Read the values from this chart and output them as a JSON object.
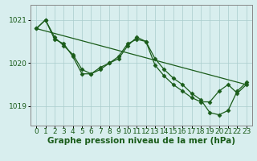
{
  "xlabel": "Graphe pression niveau de la mer (hPa)",
  "x_labels": [
    "0",
    "1",
    "2",
    "3",
    "4",
    "5",
    "6",
    "7",
    "8",
    "9",
    "10",
    "11",
    "12",
    "13",
    "14",
    "15",
    "16",
    "17",
    "18",
    "19",
    "20",
    "21",
    "22",
    "23"
  ],
  "hours": [
    0,
    1,
    2,
    3,
    4,
    5,
    6,
    7,
    8,
    9,
    10,
    11,
    12,
    13,
    14,
    15,
    16,
    17,
    18,
    19,
    20,
    21,
    22,
    23
  ],
  "line_straight": [
    [
      0,
      1020.8
    ],
    [
      23,
      1019.5
    ]
  ],
  "line_upper": [
    1020.8,
    1021.0,
    1020.6,
    1020.4,
    1020.2,
    1019.85,
    1019.75,
    1019.85,
    1020.0,
    1020.15,
    1020.45,
    1020.55,
    1020.5,
    1020.1,
    1019.85,
    1019.65,
    1019.5,
    1019.3,
    1019.15,
    1018.85,
    1018.8,
    1018.9,
    1019.35,
    1019.55
  ],
  "line_lower": [
    1020.8,
    1021.0,
    1020.55,
    1020.45,
    1020.15,
    1019.75,
    1019.75,
    1019.9,
    1020.0,
    1020.1,
    1020.4,
    1020.6,
    1020.5,
    1019.95,
    1019.7,
    1019.5,
    1019.35,
    1019.2,
    1019.1,
    1019.1,
    1019.35,
    1019.5,
    1019.3,
    1019.5
  ],
  "line_color": "#1a5c1a",
  "bg_color": "#d8eeee",
  "grid_color": "#aacccc",
  "ylim_min": 1018.55,
  "ylim_max": 1021.35,
  "yticks": [
    1019,
    1020,
    1021
  ],
  "tick_fontsize": 6.5,
  "xlabel_fontsize": 7.5,
  "marker_size": 2.5,
  "line_width": 0.9
}
